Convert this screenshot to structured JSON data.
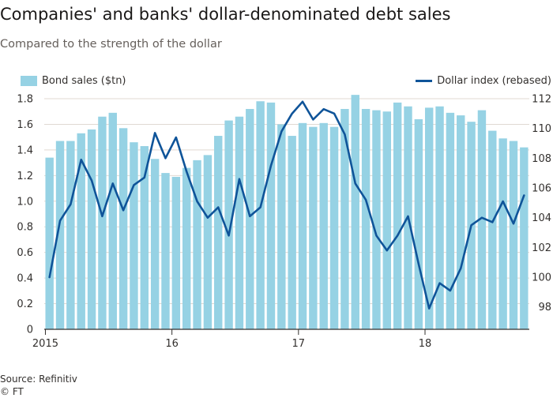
{
  "header": {
    "title": "Companies' and banks' dollar-denominated debt sales",
    "subtitle": "Compared to the strength of the dollar"
  },
  "footer": {
    "source": "Source: Refinitiv",
    "credit": "© FT"
  },
  "colors": {
    "bars": "#96d2e4",
    "line": "#0f5499",
    "grid": "#e0d9d2",
    "axis": "#33302e"
  },
  "chart_data": {
    "type": "bar",
    "title": "Companies' and banks' dollar-denominated debt sales",
    "subtitle": "Compared to the strength of the dollar",
    "xlabel": "",
    "ylabel": "",
    "legend_placement": "top",
    "categories": [
      "2015-01",
      "2015-02",
      "2015-03",
      "2015-04",
      "2015-05",
      "2015-06",
      "2015-07",
      "2015-08",
      "2015-09",
      "2015-10",
      "2015-11",
      "2015-12",
      "2016-01",
      "2016-02",
      "2016-03",
      "2016-04",
      "2016-05",
      "2016-06",
      "2016-07",
      "2016-08",
      "2016-09",
      "2016-10",
      "2016-11",
      "2016-12",
      "2017-01",
      "2017-02",
      "2017-03",
      "2017-04",
      "2017-05",
      "2017-06",
      "2017-07",
      "2017-08",
      "2017-09",
      "2017-10",
      "2017-11",
      "2017-12",
      "2018-01",
      "2018-02",
      "2018-03",
      "2018-04",
      "2018-05",
      "2018-06",
      "2018-07",
      "2018-08",
      "2018-09",
      "2018-10"
    ],
    "x_ticks": [
      {
        "label": "2015",
        "index": 0
      },
      {
        "label": "16",
        "index": 12
      },
      {
        "label": "17",
        "index": 24
      },
      {
        "label": "18",
        "index": 36
      }
    ],
    "series": [
      {
        "name": "Bond sales ($tn)",
        "type": "bar",
        "axis": "left",
        "values": [
          1.34,
          1.47,
          1.47,
          1.53,
          1.56,
          1.66,
          1.69,
          1.57,
          1.46,
          1.43,
          1.33,
          1.22,
          1.19,
          1.26,
          1.32,
          1.36,
          1.51,
          1.63,
          1.66,
          1.72,
          1.78,
          1.77,
          1.6,
          1.51,
          1.61,
          1.58,
          1.61,
          1.58,
          1.72,
          1.83,
          1.72,
          1.71,
          1.7,
          1.77,
          1.74,
          1.64,
          1.73,
          1.74,
          1.69,
          1.67,
          1.62,
          1.71,
          1.55,
          1.49,
          1.47,
          1.42
        ]
      },
      {
        "name": "Dollar index (rebased)",
        "type": "line",
        "axis": "right",
        "values": [
          100.0,
          103.8,
          104.9,
          107.9,
          106.5,
          104.1,
          106.3,
          104.5,
          106.2,
          106.7,
          109.7,
          108.0,
          109.4,
          107.1,
          105.1,
          104.0,
          104.7,
          102.8,
          106.6,
          104.1,
          104.7,
          107.5,
          109.8,
          111.0,
          111.8,
          110.6,
          111.3,
          111.0,
          109.6,
          106.3,
          105.2,
          102.8,
          101.8,
          102.8,
          104.1,
          100.9,
          97.9,
          99.6,
          99.1,
          100.6,
          103.5,
          104.0,
          103.7,
          105.1,
          103.6,
          105.5
        ]
      }
    ],
    "y_left": {
      "min": 0,
      "max": 1.8,
      "ticks": [
        0,
        0.2,
        0.4,
        0.6,
        0.8,
        1.0,
        1.2,
        1.4,
        1.6,
        1.8
      ],
      "tick_labels": [
        "0",
        "0.2",
        "0.4",
        "0.6",
        "0.8",
        "1.0",
        "1.2",
        "1.4",
        "1.6",
        "1.8"
      ]
    },
    "y_right": {
      "min": 96.5,
      "max": 112,
      "ticks": [
        98,
        100,
        102,
        104,
        106,
        108,
        110,
        112
      ],
      "tick_labels": [
        "98",
        "100",
        "102",
        "104",
        "106",
        "108",
        "110",
        "112"
      ]
    },
    "grid": true
  }
}
